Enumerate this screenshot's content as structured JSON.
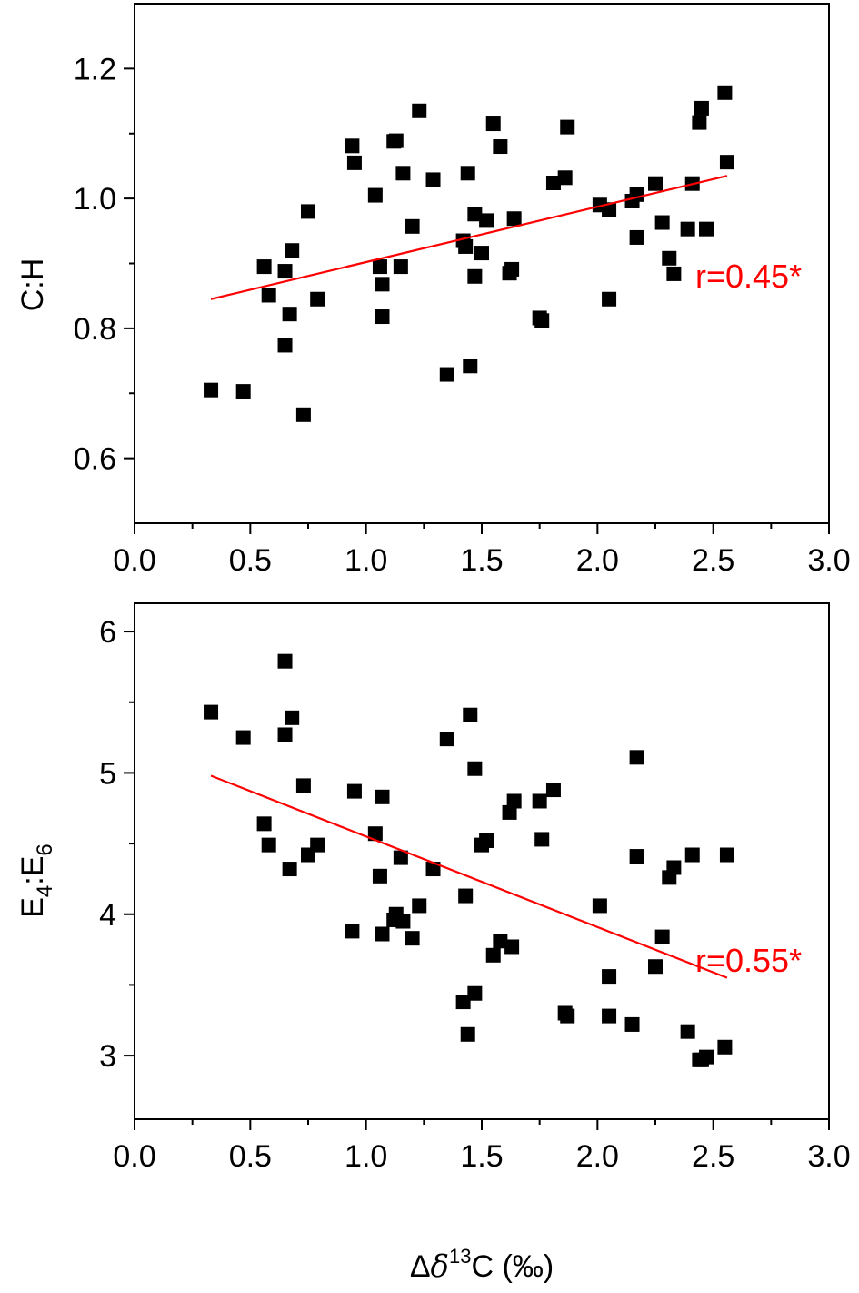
{
  "chart_data": [
    {
      "type": "scatter",
      "ylabel": "C:H",
      "xlim": [
        0.0,
        3.0
      ],
      "ylim": [
        0.5,
        1.3
      ],
      "xticks": [
        "0.0",
        "0.5",
        "1.0",
        "1.5",
        "2.0",
        "2.5",
        "3.0"
      ],
      "yticks": [
        "0.6",
        "0.8",
        "1.0",
        "1.2"
      ],
      "annotation": "r=0.45*",
      "line_color": "#ff0000",
      "marker_color": "#000000",
      "fit": {
        "x": [
          0.33,
          2.56
        ],
        "y": [
          0.845,
          1.035
        ]
      },
      "points": [
        [
          0.33,
          0.705
        ],
        [
          0.47,
          0.703
        ],
        [
          0.56,
          0.895
        ],
        [
          0.58,
          0.851
        ],
        [
          0.65,
          0.888
        ],
        [
          0.65,
          0.774
        ],
        [
          0.67,
          0.822
        ],
        [
          0.68,
          0.92
        ],
        [
          0.73,
          0.667
        ],
        [
          0.75,
          0.98
        ],
        [
          0.79,
          0.845
        ],
        [
          0.94,
          1.081
        ],
        [
          0.95,
          1.055
        ],
        [
          1.04,
          1.005
        ],
        [
          1.06,
          0.895
        ],
        [
          1.07,
          0.868
        ],
        [
          1.07,
          0.818
        ],
        [
          1.12,
          1.088
        ],
        [
          1.13,
          1.089
        ],
        [
          1.15,
          0.895
        ],
        [
          1.16,
          1.039
        ],
        [
          1.2,
          0.957
        ],
        [
          1.23,
          1.135
        ],
        [
          1.29,
          1.029
        ],
        [
          1.35,
          0.729
        ],
        [
          1.42,
          0.935
        ],
        [
          1.43,
          0.926
        ],
        [
          1.44,
          1.039
        ],
        [
          1.45,
          0.742
        ],
        [
          1.47,
          0.976
        ],
        [
          1.47,
          0.88
        ],
        [
          1.5,
          0.916
        ],
        [
          1.52,
          0.966
        ],
        [
          1.55,
          1.115
        ],
        [
          1.58,
          1.08
        ],
        [
          1.62,
          0.885
        ],
        [
          1.63,
          0.891
        ],
        [
          1.64,
          0.969
        ],
        [
          1.75,
          0.816
        ],
        [
          1.76,
          0.812
        ],
        [
          1.81,
          1.024
        ],
        [
          1.86,
          1.032
        ],
        [
          1.87,
          1.11
        ],
        [
          2.01,
          0.99
        ],
        [
          2.05,
          0.983
        ],
        [
          2.05,
          0.845
        ],
        [
          2.15,
          0.996
        ],
        [
          2.17,
          1.006
        ],
        [
          2.17,
          0.94
        ],
        [
          2.25,
          1.023
        ],
        [
          2.28,
          0.963
        ],
        [
          2.31,
          0.908
        ],
        [
          2.33,
          0.884
        ],
        [
          2.39,
          0.953
        ],
        [
          2.41,
          1.023
        ],
        [
          2.44,
          1.117
        ],
        [
          2.45,
          1.139
        ],
        [
          2.47,
          0.953
        ],
        [
          2.55,
          1.163
        ],
        [
          2.56,
          1.056
        ]
      ]
    },
    {
      "type": "scatter",
      "ylabel": "E",
      "ylabel_sub1": "4",
      "ylabel_sep": ":E",
      "ylabel_sub2": "6",
      "xlabel_prefix": "Δ",
      "xlabel_delta": "δ",
      "xlabel_sup": "13",
      "xlabel_suffix": "C (‰)",
      "xlim": [
        0.0,
        3.0
      ],
      "ylim": [
        2.55,
        6.2
      ],
      "xticks": [
        "0.0",
        "0.5",
        "1.0",
        "1.5",
        "2.0",
        "2.5",
        "3.0"
      ],
      "yticks": [
        "3",
        "4",
        "5",
        "6"
      ],
      "annotation": "r=0.55*",
      "line_color": "#ff0000",
      "marker_color": "#000000",
      "fit": {
        "x": [
          0.33,
          2.56
        ],
        "y": [
          4.98,
          3.55
        ]
      },
      "points": [
        [
          0.33,
          5.43
        ],
        [
          0.47,
          5.25
        ],
        [
          0.56,
          4.64
        ],
        [
          0.58,
          4.49
        ],
        [
          0.65,
          5.79
        ],
        [
          0.65,
          5.27
        ],
        [
          0.67,
          4.32
        ],
        [
          0.68,
          5.39
        ],
        [
          0.73,
          4.91
        ],
        [
          0.75,
          4.42
        ],
        [
          0.79,
          4.49
        ],
        [
          0.94,
          3.88
        ],
        [
          0.95,
          4.87
        ],
        [
          1.04,
          4.57
        ],
        [
          1.06,
          4.27
        ],
        [
          1.07,
          4.83
        ],
        [
          1.07,
          3.86
        ],
        [
          1.12,
          3.96
        ],
        [
          1.13,
          4.0
        ],
        [
          1.15,
          4.4
        ],
        [
          1.16,
          3.95
        ],
        [
          1.2,
          3.83
        ],
        [
          1.23,
          4.06
        ],
        [
          1.29,
          4.32
        ],
        [
          1.35,
          5.24
        ],
        [
          1.42,
          3.38
        ],
        [
          1.43,
          4.13
        ],
        [
          1.44,
          3.15
        ],
        [
          1.45,
          5.41
        ],
        [
          1.47,
          5.03
        ],
        [
          1.47,
          3.44
        ],
        [
          1.5,
          4.49
        ],
        [
          1.52,
          4.52
        ],
        [
          1.55,
          3.71
        ],
        [
          1.58,
          3.81
        ],
        [
          1.62,
          4.72
        ],
        [
          1.63,
          3.77
        ],
        [
          1.64,
          4.8
        ],
        [
          1.75,
          4.8
        ],
        [
          1.76,
          4.53
        ],
        [
          1.81,
          4.88
        ],
        [
          1.86,
          3.3
        ],
        [
          1.87,
          3.28
        ],
        [
          2.01,
          4.06
        ],
        [
          2.05,
          3.56
        ],
        [
          2.05,
          3.28
        ],
        [
          2.15,
          3.22
        ],
        [
          2.17,
          5.11
        ],
        [
          2.17,
          4.41
        ],
        [
          2.25,
          3.63
        ],
        [
          2.28,
          3.84
        ],
        [
          2.31,
          4.26
        ],
        [
          2.33,
          4.33
        ],
        [
          2.39,
          3.17
        ],
        [
          2.41,
          4.42
        ],
        [
          2.44,
          2.97
        ],
        [
          2.45,
          2.97
        ],
        [
          2.47,
          2.99
        ],
        [
          2.55,
          3.06
        ],
        [
          2.56,
          4.42
        ]
      ]
    }
  ]
}
